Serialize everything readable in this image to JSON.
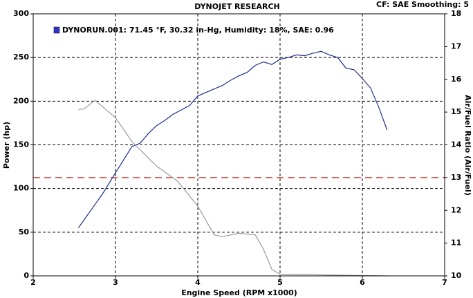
{
  "chart_data": {
    "type": "line",
    "title": "DYNOJET RESEARCH",
    "subtitle": "CF: SAE  Smoothing: 5",
    "legend_text": "DYNORUN.001: 71.45 °F, 30.32 in-Hg, Humidity: 18%, SAE: 0.96",
    "legend_color": "#3333cc",
    "xlabel": "Engine Speed (RPM x1000)",
    "ylabel": "Power (hp)",
    "y2label": "Air/Fuel Ratio (Air/Fuel)",
    "xlim": [
      2,
      7
    ],
    "xticks": [
      2,
      3,
      4,
      5,
      6,
      7
    ],
    "ylim": [
      0,
      300
    ],
    "yticks": [
      0,
      50,
      100,
      150,
      200,
      250,
      300
    ],
    "y2lim": [
      10,
      18
    ],
    "y2ticks": [
      10,
      11,
      12,
      13,
      14,
      15,
      16,
      17,
      18
    ],
    "grid": true,
    "reference_y2": 13,
    "reference_color": "#cc2222",
    "series": [
      {
        "color": "#1f2f8f",
        "x": [
          2.55,
          2.7,
          2.85,
          3.0,
          3.1,
          3.2,
          3.3,
          3.4,
          3.5,
          3.6,
          3.7,
          3.8,
          3.9,
          4.0,
          4.1,
          4.2,
          4.3,
          4.4,
          4.5,
          4.6,
          4.7,
          4.8,
          4.9,
          5.0,
          5.1,
          5.2,
          5.3,
          5.4,
          5.5,
          5.6,
          5.7,
          5.8,
          5.9,
          6.0,
          6.1,
          6.2,
          6.3
        ],
        "values": [
          55,
          75,
          95,
          118,
          133,
          148,
          152,
          163,
          172,
          178,
          185,
          190,
          195,
          206,
          210,
          214,
          218,
          224,
          229,
          233,
          241,
          245,
          242,
          248,
          250,
          253,
          252,
          255,
          257,
          253,
          250,
          238,
          236,
          226,
          215,
          193,
          167
        ]
      },
      {
        "color": "#999999",
        "axis": "y2",
        "x": [
          2.55,
          2.62,
          2.75,
          3.0,
          3.2,
          3.5,
          3.75,
          4.0,
          4.2,
          4.3,
          4.5,
          4.7,
          4.8,
          4.9,
          5.0,
          6.3
        ],
        "values": [
          15.08,
          15.1,
          15.36,
          14.83,
          14.1,
          13.35,
          12.9,
          12.13,
          11.25,
          11.2,
          11.3,
          11.25,
          10.8,
          10.2,
          10.05,
          10.0
        ]
      }
    ]
  }
}
